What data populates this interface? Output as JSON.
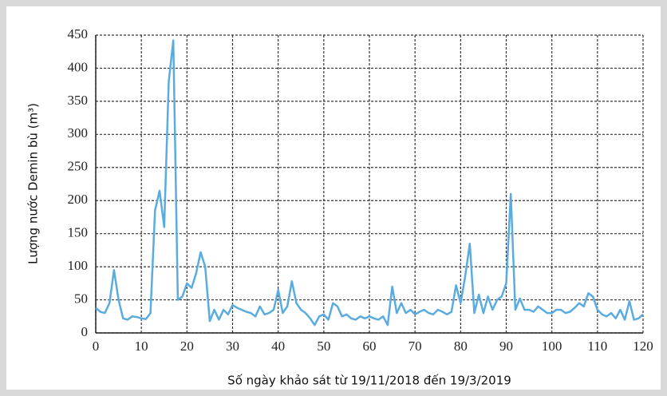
{
  "chart_data": {
    "type": "line",
    "y_label": "Lượng nước Demin bù (m³)",
    "x_label": "Số ngày khảo sát từ 19/11/2018 đến 19/3/2019",
    "x": [
      0,
      1,
      2,
      3,
      4,
      5,
      6,
      7,
      8,
      9,
      10,
      11,
      12,
      13,
      14,
      15,
      16,
      17,
      18,
      19,
      20,
      21,
      22,
      23,
      24,
      25,
      26,
      27,
      28,
      29,
      30,
      31,
      32,
      33,
      34,
      35,
      36,
      37,
      38,
      39,
      40,
      41,
      42,
      43,
      44,
      45,
      46,
      47,
      48,
      49,
      50,
      51,
      52,
      53,
      54,
      55,
      56,
      57,
      58,
      59,
      60,
      61,
      62,
      63,
      64,
      65,
      66,
      67,
      68,
      69,
      70,
      71,
      72,
      73,
      74,
      75,
      76,
      77,
      78,
      79,
      80,
      81,
      82,
      83,
      84,
      85,
      86,
      87,
      88,
      89,
      90,
      91,
      92,
      93,
      94,
      95,
      96,
      97,
      98,
      99,
      100,
      101,
      102,
      103,
      104,
      105,
      106,
      107,
      108,
      109,
      110,
      111,
      112,
      113,
      114,
      115,
      116,
      117,
      118,
      119,
      120
    ],
    "series": [
      {
        "color": "#5aace0",
        "values": [
          38,
          32,
          30,
          45,
          95,
          50,
          22,
          20,
          25,
          24,
          22,
          21,
          30,
          185,
          215,
          160,
          380,
          442,
          50,
          55,
          75,
          68,
          90,
          122,
          100,
          18,
          35,
          20,
          35,
          28,
          42,
          38,
          35,
          32,
          30,
          25,
          40,
          28,
          30,
          35,
          65,
          30,
          40,
          78,
          45,
          35,
          30,
          22,
          12,
          25,
          28,
          20,
          45,
          40,
          25,
          28,
          22,
          20,
          25,
          22,
          25,
          22,
          20,
          25,
          12,
          70,
          30,
          45,
          30,
          35,
          28,
          32,
          35,
          30,
          28,
          35,
          32,
          28,
          32,
          72,
          45,
          85,
          135,
          30,
          58,
          30,
          55,
          35,
          50,
          55,
          75,
          210,
          35,
          52,
          35,
          35,
          32,
          40,
          35,
          30,
          30,
          35,
          35,
          30,
          32,
          38,
          45,
          40,
          60,
          55,
          35,
          28,
          25,
          30,
          22,
          35,
          20,
          48,
          20,
          22,
          28
        ]
      }
    ],
    "xlim": [
      0,
      120
    ],
    "xticks": [
      0,
      10,
      20,
      30,
      40,
      50,
      60,
      70,
      80,
      90,
      100,
      110,
      120
    ],
    "ylim": [
      0,
      450
    ],
    "yticks": [
      0,
      50,
      100,
      150,
      200,
      250,
      300,
      350,
      400,
      450
    ],
    "grid": true
  }
}
